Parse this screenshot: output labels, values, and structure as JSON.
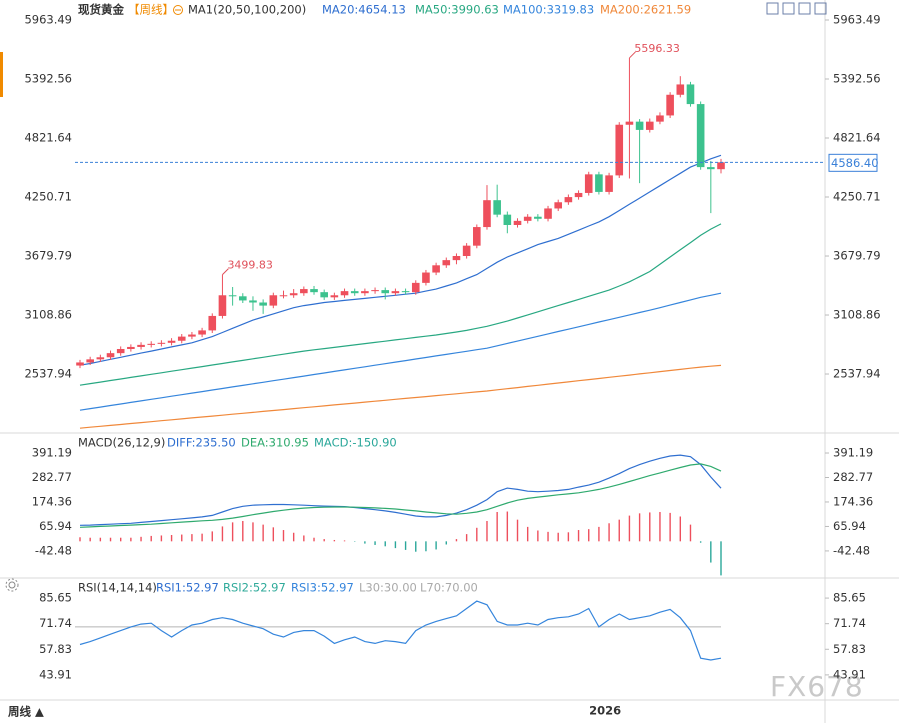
{
  "header": {
    "title": "现货黄金",
    "period": "【周线】",
    "ma_group": "MA1(20,50,100,200)"
  },
  "chart_data": [
    {
      "type": "candlestick",
      "categories": [
        null,
        null,
        null,
        null,
        null,
        null,
        null,
        null,
        null,
        null,
        null,
        null,
        null,
        null,
        null,
        null,
        null,
        null,
        null,
        null,
        null,
        null,
        null,
        null,
        null,
        null,
        null,
        null,
        null,
        null,
        null,
        null,
        null,
        null,
        null,
        null,
        null,
        null,
        null,
        null,
        null,
        null,
        null,
        null,
        null,
        null,
        null,
        null,
        null,
        null,
        null,
        null,
        "2026",
        null,
        null,
        null,
        null,
        null,
        null,
        null,
        null,
        null,
        null,
        null
      ],
      "open": [
        2620,
        2650,
        2680,
        2700,
        2740,
        2780,
        2800,
        2820,
        2830,
        2840,
        2860,
        2900,
        2920,
        2960,
        3100,
        3300,
        3290,
        3250,
        3230,
        3200,
        3300,
        3300,
        3320,
        3360,
        3330,
        3280,
        3300,
        3340,
        3320,
        3340,
        3350,
        3320,
        3340,
        3330,
        3420,
        3520,
        3590,
        3640,
        3680,
        3780,
        3960,
        4220,
        4080,
        3980,
        4020,
        4060,
        4040,
        4140,
        4200,
        4250,
        4290,
        4470,
        4300,
        4460,
        4950,
        4980,
        4900,
        4980,
        5040,
        5240,
        5340,
        5150,
        4540,
        4520
      ],
      "high": [
        2675,
        2705,
        2725,
        2765,
        2805,
        2825,
        2845,
        2855,
        2865,
        2885,
        2925,
        2945,
        2985,
        3125,
        3499.83,
        3380,
        3320,
        3290,
        3260,
        3325,
        3345,
        3360,
        3385,
        3390,
        3355,
        3325,
        3365,
        3365,
        3365,
        3375,
        3375,
        3365,
        3365,
        3445,
        3545,
        3615,
        3665,
        3705,
        3805,
        3985,
        4366,
        4370,
        4110,
        4045,
        4085,
        4085,
        4165,
        4225,
        4275,
        4315,
        4495,
        4495,
        4485,
        4975,
        5596.33,
        5005,
        5010,
        5070,
        5265,
        5420,
        5365,
        5175,
        4600,
        4620
      ],
      "low": [
        2595,
        2625,
        2655,
        2675,
        2715,
        2755,
        2775,
        2795,
        2805,
        2815,
        2835,
        2875,
        2895,
        2935,
        3075,
        3200,
        3225,
        3150,
        3120,
        3175,
        3270,
        3275,
        3295,
        3305,
        3255,
        3255,
        3275,
        3295,
        3295,
        3315,
        3260,
        3295,
        3305,
        3305,
        3395,
        3495,
        3565,
        3600,
        3655,
        3755,
        3935,
        4055,
        3900,
        3955,
        3995,
        4015,
        4015,
        4115,
        4175,
        4225,
        4265,
        4275,
        4275,
        4435,
        4430,
        4385,
        4875,
        4955,
        5015,
        5215,
        5125,
        4515,
        4095,
        4480
      ],
      "close": [
        2650,
        2680,
        2700,
        2740,
        2780,
        2800,
        2820,
        2830,
        2840,
        2860,
        2900,
        2920,
        2960,
        3100,
        3300,
        3290,
        3250,
        3230,
        3200,
        3300,
        3300,
        3320,
        3360,
        3330,
        3280,
        3300,
        3340,
        3320,
        3340,
        3350,
        3320,
        3340,
        3330,
        3420,
        3520,
        3590,
        3640,
        3680,
        3780,
        3960,
        4220,
        4080,
        3980,
        4020,
        4060,
        4040,
        4140,
        4200,
        4250,
        4290,
        4470,
        4300,
        4460,
        4950,
        4980,
        4900,
        4980,
        5040,
        5240,
        5340,
        5150,
        4540,
        4520,
        4586.4
      ],
      "up_color": "#ee4f5c",
      "down_color": "#3cc28e",
      "ylim": [
        1977,
        6157
      ],
      "yticks": [
        5963.49,
        5392.56,
        4821.64,
        4250.71,
        3679.79,
        3108.86,
        2537.94
      ],
      "last_price": {
        "value": 4586.4,
        "label": "4586.40"
      },
      "series": [
        {
          "name": "MA20:4654.13",
          "color": "#2f6fd0",
          "values": [
            2623,
            2640,
            2660,
            2680,
            2700,
            2720,
            2740,
            2760,
            2780,
            2800,
            2820,
            2840,
            2870,
            2900,
            2940,
            2980,
            3020,
            3060,
            3090,
            3120,
            3150,
            3180,
            3200,
            3215,
            3230,
            3240,
            3250,
            3260,
            3270,
            3280,
            3290,
            3300,
            3310,
            3320,
            3340,
            3360,
            3390,
            3420,
            3460,
            3500,
            3560,
            3620,
            3670,
            3710,
            3750,
            3790,
            3820,
            3850,
            3890,
            3930,
            3970,
            4010,
            4060,
            4120,
            4180,
            4240,
            4300,
            4360,
            4420,
            4480,
            4540,
            4580,
            4620,
            4654.13
          ]
        },
        {
          "name": "MA50:3990.63",
          "color": "#28a882",
          "values": [
            2430,
            2445,
            2460,
            2475,
            2490,
            2505,
            2520,
            2535,
            2550,
            2565,
            2580,
            2595,
            2610,
            2625,
            2640,
            2655,
            2670,
            2685,
            2700,
            2715,
            2730,
            2745,
            2760,
            2772,
            2784,
            2796,
            2808,
            2820,
            2832,
            2844,
            2856,
            2868,
            2880,
            2892,
            2904,
            2916,
            2930,
            2945,
            2960,
            2980,
            3000,
            3025,
            3050,
            3080,
            3110,
            3140,
            3170,
            3200,
            3230,
            3260,
            3290,
            3320,
            3350,
            3390,
            3430,
            3480,
            3530,
            3600,
            3670,
            3740,
            3810,
            3880,
            3940,
            3990.63
          ]
        },
        {
          "name": "MA100:3319.83",
          "color": "#3585dc",
          "values": [
            2188,
            2203,
            2218,
            2233,
            2248,
            2263,
            2278,
            2293,
            2308,
            2323,
            2338,
            2353,
            2368,
            2383,
            2398,
            2413,
            2428,
            2443,
            2458,
            2473,
            2488,
            2503,
            2518,
            2533,
            2548,
            2563,
            2578,
            2593,
            2608,
            2623,
            2638,
            2653,
            2668,
            2683,
            2698,
            2713,
            2728,
            2743,
            2758,
            2773,
            2788,
            2811,
            2834,
            2857,
            2880,
            2903,
            2926,
            2949,
            2972,
            2995,
            3018,
            3041,
            3064,
            3087,
            3110,
            3133,
            3156,
            3180,
            3205,
            3230,
            3255,
            3280,
            3300,
            3319.83
          ]
        },
        {
          "name": "MA200:2621.59",
          "color": "#f0883a",
          "values": [
            2014,
            2023,
            2032,
            2041,
            2050,
            2059,
            2068,
            2077,
            2086,
            2095,
            2104,
            2113,
            2122,
            2131,
            2140,
            2149,
            2158,
            2167,
            2176,
            2185,
            2194,
            2203,
            2212,
            2221,
            2230,
            2239,
            2248,
            2257,
            2266,
            2275,
            2284,
            2293,
            2302,
            2311,
            2320,
            2329,
            2338,
            2347,
            2356,
            2365,
            2374,
            2385,
            2396,
            2407,
            2418,
            2429,
            2440,
            2451,
            2462,
            2473,
            2484,
            2495,
            2506,
            2517,
            2528,
            2539,
            2550,
            2561,
            2572,
            2583,
            2594,
            2605,
            2614,
            2621.59
          ]
        }
      ]
    },
    {
      "type": "macd",
      "title": "MACD(26,12,9)",
      "ylim": [
        -158,
        471
      ],
      "yticks": [
        391.19,
        282.77,
        174.36,
        65.94,
        -42.48
      ],
      "series": [
        {
          "name": "DIFF:235.50",
          "color": "#2f6fd0",
          "values": [
            71,
            72,
            74,
            76,
            78,
            80,
            84,
            88,
            92,
            96,
            100,
            104,
            108,
            115,
            130,
            145,
            155,
            160,
            162,
            163,
            163,
            162,
            160,
            158,
            156,
            155,
            154,
            150,
            145,
            140,
            135,
            128,
            120,
            112,
            108,
            108,
            115,
            125,
            140,
            160,
            185,
            220,
            236,
            230,
            222,
            220,
            222,
            225,
            230,
            240,
            249,
            262,
            280,
            300,
            322,
            340,
            355,
            368,
            378,
            382,
            375,
            340,
            285,
            235.5
          ]
        },
        {
          "name": "DEA:310.95",
          "color": "#2faa6e",
          "values": [
            62,
            64,
            66,
            68,
            70,
            72,
            74,
            76,
            79,
            82,
            85,
            88,
            91,
            93,
            97,
            103,
            110,
            118,
            125,
            132,
            138,
            143,
            147,
            150,
            151,
            152,
            152,
            151,
            150,
            148,
            146,
            143,
            139,
            135,
            130,
            126,
            122,
            120,
            124,
            130,
            140,
            155,
            170,
            182,
            190,
            196,
            201,
            206,
            210,
            215,
            222,
            230,
            240,
            252,
            265,
            278,
            291,
            303,
            315,
            327,
            338,
            343,
            332,
            310.95
          ]
        }
      ],
      "histogram": {
        "name": "MACD:-150.90",
        "color": "#2aa79a",
        "up_color": "#ee4f5c",
        "down_color": "#2aa79a",
        "values": [
          18,
          16,
          16,
          16,
          16,
          16,
          20,
          24,
          26,
          28,
          30,
          32,
          34,
          44,
          66,
          84,
          90,
          84,
          74,
          62,
          50,
          38,
          26,
          16,
          10,
          6,
          4,
          -2,
          -10,
          -16,
          -22,
          -30,
          -38,
          -46,
          -44,
          -36,
          -14,
          10,
          32,
          60,
          90,
          130,
          132,
          96,
          64,
          48,
          42,
          38,
          40,
          50,
          54,
          64,
          80,
          96,
          114,
          124,
          128,
          130,
          126,
          110,
          74,
          -6,
          -94,
          -150.9
        ]
      }
    },
    {
      "type": "line",
      "title": "RSI(14,14,14)",
      "ylim": [
        30.27,
        95.47
      ],
      "yticks": [
        85.65,
        71.74,
        57.83,
        43.91
      ],
      "series_labels": [
        {
          "name": "RSI1:52.97",
          "color": "#2f6fd0"
        },
        {
          "name": "RSI2:52.97",
          "color": "#2faa9a"
        },
        {
          "name": "RSI3:52.97",
          "color": "#3585dc"
        }
      ],
      "color": "#3585dc",
      "values": [
        60.4,
        62,
        64,
        66,
        68,
        70,
        71.5,
        72,
        68,
        64.5,
        68,
        71,
        72,
        74,
        75,
        74,
        72,
        70.5,
        69,
        66,
        64.5,
        67,
        68,
        68,
        65,
        61,
        63,
        64.5,
        62,
        61,
        62.5,
        62,
        61,
        68,
        71,
        73,
        74.5,
        76,
        80,
        84,
        82,
        73,
        71,
        71,
        72,
        71,
        74,
        75,
        75.5,
        77,
        80,
        70,
        74,
        77,
        74,
        75,
        76,
        78,
        79.5,
        75,
        68,
        53,
        52,
        52.97
      ],
      "reference_lines": [
        {
          "label": "L30:30.00",
          "value": 30
        },
        {
          "label": "L70:70.00",
          "value": 70
        }
      ]
    }
  ],
  "footer": {
    "period_button": "周线 ▲"
  },
  "watermark": "FX678"
}
